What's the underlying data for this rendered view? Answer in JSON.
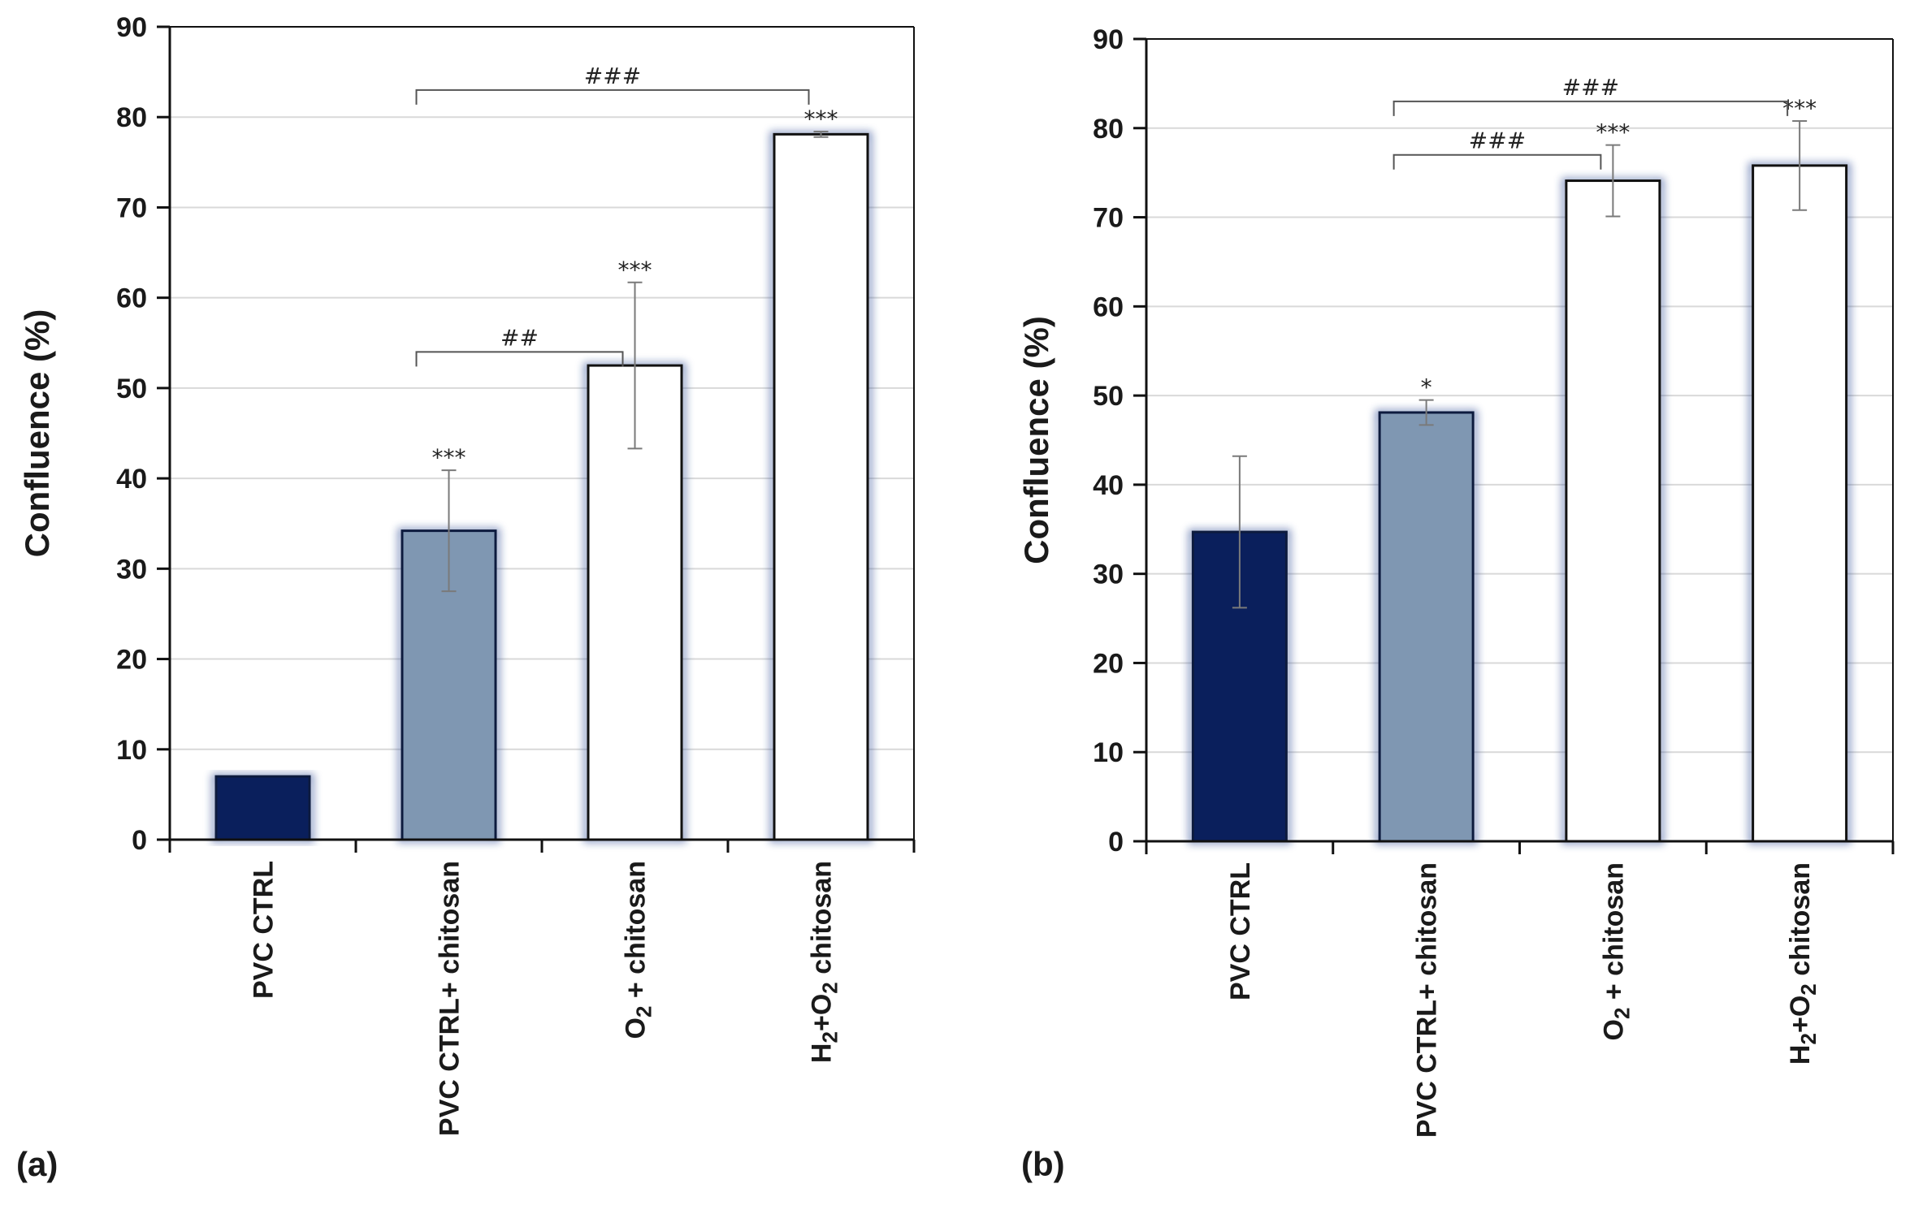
{
  "chart_data": [
    {
      "type": "bar",
      "panel_label": "(a)",
      "categories": [
        {
          "pre": "PVC CTRL",
          "sub1": "",
          "mid": "",
          "sub2": "",
          "post": ""
        },
        {
          "pre": "PVC CTRL+ chitosan",
          "sub1": "",
          "mid": "",
          "sub2": "",
          "post": ""
        },
        {
          "pre": "O",
          "sub1": "2",
          "mid": " + chitosan",
          "sub2": "",
          "post": ""
        },
        {
          "pre": "H",
          "sub1": "2",
          "mid": "+O",
          "sub2": "2",
          "post": " chitosan"
        }
      ],
      "values": [
        7,
        34.2,
        52.5,
        78.1
      ],
      "errors": [
        0,
        6.7,
        9.2,
        0.3
      ],
      "colors": [
        "#0a1f5c",
        "#7f97b2",
        "#ffffff",
        "#ffffff"
      ],
      "significance": [
        "",
        "***",
        "***",
        "***"
      ],
      "brackets": [
        {
          "from": 1,
          "to": 2,
          "y": 54,
          "label": "##"
        },
        {
          "from": 1,
          "to": 3,
          "y": 83,
          "label": "###"
        }
      ],
      "ylabel": "Confluence (%)",
      "xlabel": "",
      "ylim": [
        0,
        90
      ],
      "yticks": [
        0,
        10,
        20,
        30,
        40,
        50,
        60,
        70,
        80,
        90
      ],
      "grid": true
    },
    {
      "type": "bar",
      "panel_label": "(b)",
      "categories": [
        {
          "pre": "PVC CTRL",
          "sub1": "",
          "mid": "",
          "sub2": "",
          "post": ""
        },
        {
          "pre": "PVC CTRL+ chitosan",
          "sub1": "",
          "mid": "",
          "sub2": "",
          "post": ""
        },
        {
          "pre": "O",
          "sub1": "2",
          "mid": " + chitosan",
          "sub2": "",
          "post": ""
        },
        {
          "pre": "H",
          "sub1": "2",
          "mid": "+O",
          "sub2": "2",
          "post": " chitosan"
        }
      ],
      "values": [
        34.7,
        48.1,
        74.1,
        75.8
      ],
      "errors": [
        8.5,
        1.4,
        4.0,
        5.0
      ],
      "colors": [
        "#0a1f5c",
        "#7f97b2",
        "#ffffff",
        "#ffffff"
      ],
      "significance": [
        "",
        "*",
        "***",
        "***"
      ],
      "brackets": [
        {
          "from": 1,
          "to": 2,
          "y": 77,
          "label": "###"
        },
        {
          "from": 1,
          "to": 3,
          "y": 83,
          "label": "###"
        }
      ],
      "ylabel": "Confluence (%)",
      "xlabel": "",
      "ylim": [
        0,
        90
      ],
      "yticks": [
        0,
        10,
        20,
        30,
        40,
        50,
        60,
        70,
        80,
        90
      ],
      "grid": true
    }
  ]
}
